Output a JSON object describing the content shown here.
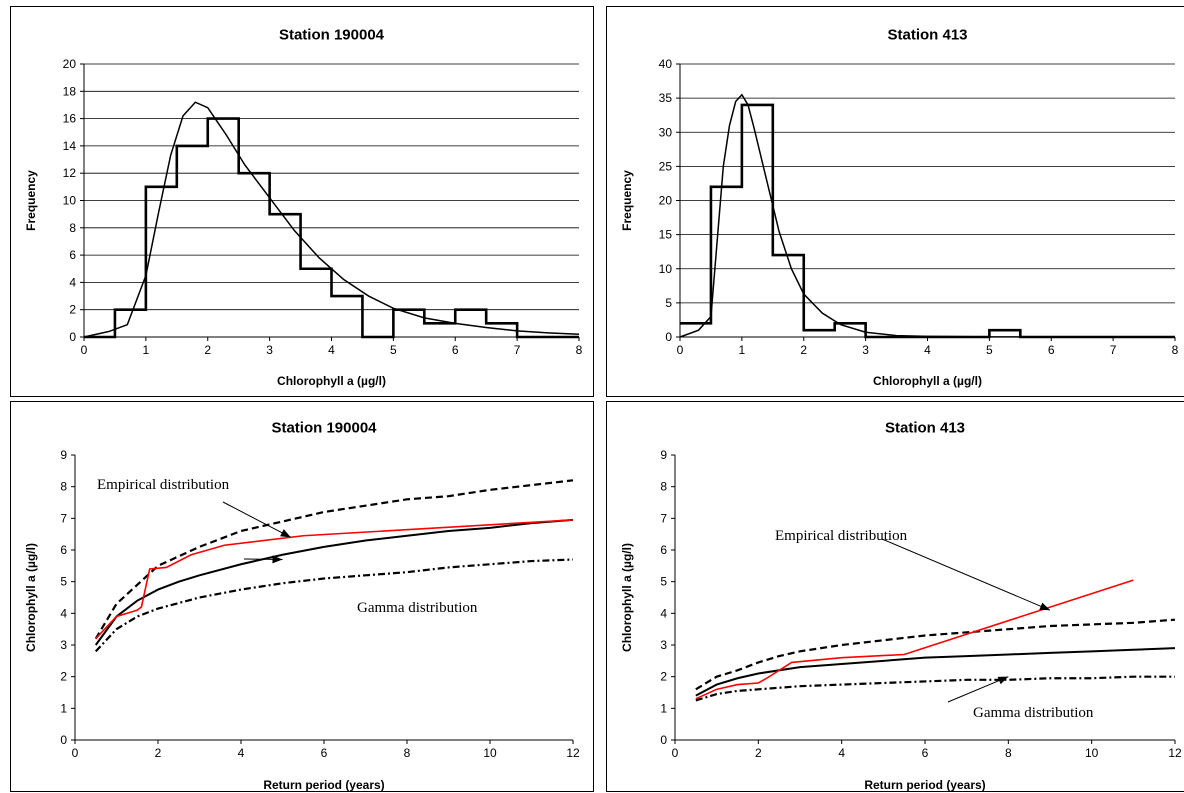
{
  "chart_data": [
    {
      "type": "bar",
      "title": "Station 190004",
      "xlabel": "Chlorophyll a (µg/l)",
      "ylabel": "Frequency",
      "xlim": [
        0,
        8
      ],
      "ylim": [
        0,
        20
      ],
      "xticks": [
        0,
        1,
        2,
        3,
        4,
        5,
        6,
        7,
        8
      ],
      "yticks": [
        0,
        2,
        4,
        6,
        8,
        10,
        12,
        14,
        16,
        18,
        20
      ],
      "grid": "horizontal",
      "series": [
        {
          "kind": "histogram-step",
          "bin_edges": [
            0,
            0.5,
            1,
            1.5,
            2,
            2.5,
            3,
            3.5,
            4,
            4.5,
            5,
            5.5,
            6,
            6.5,
            7,
            7.5,
            8
          ],
          "values": [
            0,
            2,
            11,
            14,
            16,
            12,
            9,
            5,
            3,
            0,
            2,
            1,
            2,
            1,
            0,
            0
          ]
        },
        {
          "kind": "fitted-curve",
          "x": [
            0,
            0.4,
            0.7,
            1.0,
            1.2,
            1.4,
            1.6,
            1.8,
            2.0,
            2.3,
            2.6,
            3.0,
            3.4,
            3.8,
            4.2,
            4.6,
            5.0,
            5.5,
            6.0,
            6.5,
            7.0,
            7.5,
            8.0
          ],
          "values": [
            0,
            0.4,
            0.9,
            4.5,
            9.0,
            13.3,
            16.2,
            17.2,
            16.8,
            14.8,
            12.6,
            10.2,
            7.8,
            5.8,
            4.2,
            3.0,
            2.1,
            1.4,
            1.0,
            0.7,
            0.45,
            0.3,
            0.2
          ]
        }
      ]
    },
    {
      "type": "bar",
      "title": "Station 413",
      "xlabel": "Chlorophyll a (µg/l)",
      "ylabel": "Frequency",
      "xlim": [
        0,
        8
      ],
      "ylim": [
        0,
        40
      ],
      "xticks": [
        0,
        1,
        2,
        3,
        4,
        5,
        6,
        7,
        8
      ],
      "yticks": [
        0,
        5,
        10,
        15,
        20,
        25,
        30,
        35,
        40
      ],
      "grid": "horizontal",
      "series": [
        {
          "kind": "histogram-step",
          "bin_edges": [
            0,
            0.5,
            1,
            1.5,
            2,
            2.5,
            3,
            3.5,
            4,
            4.5,
            5,
            5.5,
            6,
            6.5,
            7,
            7.5,
            8
          ],
          "values": [
            2,
            22,
            34,
            12,
            1,
            2,
            0,
            0,
            0,
            0,
            1,
            0,
            0,
            0,
            0,
            0
          ]
        },
        {
          "kind": "fitted-curve",
          "x": [
            0,
            0.3,
            0.5,
            0.6,
            0.7,
            0.8,
            0.9,
            1.0,
            1.1,
            1.2,
            1.4,
            1.6,
            1.8,
            2.0,
            2.3,
            2.6,
            3.0,
            3.5,
            4.0,
            5.0,
            6.0,
            8.0
          ],
          "values": [
            0,
            1.0,
            3.0,
            14.0,
            25.0,
            31.0,
            34.5,
            35.5,
            34.0,
            30.5,
            23.0,
            15.5,
            10.0,
            6.3,
            3.5,
            1.8,
            0.7,
            0.2,
            0.1,
            0.02,
            0,
            0
          ]
        }
      ]
    },
    {
      "type": "line",
      "title": "Station 190004",
      "xlabel": "Return period (years)",
      "ylabel": "Chlorophyll a (µg/l)",
      "xlim": [
        0,
        12
      ],
      "ylim": [
        0,
        9
      ],
      "xticks": [
        0,
        2,
        4,
        6,
        8,
        10,
        12
      ],
      "yticks": [
        0,
        1,
        2,
        3,
        4,
        5,
        6,
        7,
        8,
        9
      ],
      "grid": "none",
      "annotations": [
        {
          "text": "Empirical distribution",
          "target_x": 5.2,
          "target_y": 6.4
        },
        {
          "text": "Gamma distribution",
          "target_x": 5.0,
          "target_y": 5.7
        }
      ],
      "series": [
        {
          "style": "dashed-upper",
          "x": [
            0.5,
            1.0,
            1.5,
            2.0,
            3.0,
            4.0,
            5.0,
            6.0,
            7.0,
            8.0,
            9.0,
            10.0,
            11.0,
            12.0
          ],
          "values": [
            3.2,
            4.3,
            4.9,
            5.5,
            6.1,
            6.6,
            6.9,
            7.2,
            7.4,
            7.6,
            7.7,
            7.9,
            8.05,
            8.2
          ]
        },
        {
          "style": "solid-black",
          "x": [
            0.5,
            1.0,
            1.5,
            2.0,
            2.5,
            3.0,
            4.0,
            5.0,
            6.0,
            7.0,
            8.0,
            9.0,
            10.0,
            11.0,
            12.0
          ],
          "values": [
            3.0,
            3.9,
            4.4,
            4.75,
            5.0,
            5.2,
            5.55,
            5.85,
            6.1,
            6.3,
            6.45,
            6.6,
            6.7,
            6.85,
            6.95
          ]
        },
        {
          "style": "solid-red",
          "x": [
            0.5,
            1.0,
            1.5,
            1.6,
            1.8,
            2.2,
            2.8,
            3.6,
            5.5,
            12.0
          ],
          "values": [
            3.2,
            3.9,
            4.1,
            4.2,
            5.4,
            5.45,
            5.85,
            6.15,
            6.45,
            6.95
          ]
        },
        {
          "style": "dashed-lower",
          "x": [
            0.5,
            1.0,
            1.5,
            2.0,
            3.0,
            4.0,
            5.0,
            6.0,
            7.0,
            8.0,
            9.0,
            10.0,
            11.0,
            12.0
          ],
          "values": [
            2.8,
            3.5,
            3.9,
            4.15,
            4.5,
            4.75,
            4.95,
            5.1,
            5.2,
            5.3,
            5.45,
            5.55,
            5.65,
            5.7
          ]
        }
      ]
    },
    {
      "type": "line",
      "title": "Station 413",
      "xlabel": "Return period (years)",
      "ylabel": "Chlorophyll a (µg/l)",
      "xlim": [
        0,
        12
      ],
      "ylim": [
        0,
        9
      ],
      "xticks": [
        0,
        2,
        4,
        6,
        8,
        10,
        12
      ],
      "yticks": [
        0,
        1,
        2,
        3,
        4,
        5,
        6,
        7,
        8,
        9
      ],
      "grid": "none",
      "annotations": [
        {
          "text": "Empirical distribution",
          "target_x": 9.0,
          "target_y": 4.1
        },
        {
          "text": "Gamma distribution",
          "target_x": 8.0,
          "target_y": 2.0
        }
      ],
      "series": [
        {
          "style": "dashed-upper",
          "x": [
            0.5,
            1.0,
            1.5,
            2.0,
            2.5,
            3.0,
            4.0,
            5.0,
            6.0,
            7.0,
            8.0,
            9.0,
            10.0,
            11.0,
            12.0
          ],
          "values": [
            1.6,
            2.0,
            2.2,
            2.45,
            2.65,
            2.8,
            3.0,
            3.15,
            3.3,
            3.4,
            3.5,
            3.6,
            3.65,
            3.7,
            3.8
          ]
        },
        {
          "style": "solid-black",
          "x": [
            0.5,
            1.0,
            1.5,
            2.0,
            3.0,
            4.0,
            5.0,
            6.0,
            7.0,
            8.0,
            9.0,
            10.0,
            11.0,
            12.0
          ],
          "values": [
            1.4,
            1.75,
            1.95,
            2.1,
            2.3,
            2.4,
            2.5,
            2.6,
            2.65,
            2.7,
            2.75,
            2.8,
            2.85,
            2.9
          ]
        },
        {
          "style": "solid-red",
          "x": [
            0.5,
            1.0,
            1.5,
            2.0,
            2.2,
            2.8,
            4.0,
            5.5,
            11.0
          ],
          "values": [
            1.3,
            1.6,
            1.75,
            1.8,
            1.95,
            2.45,
            2.6,
            2.7,
            5.05
          ]
        },
        {
          "style": "dashed-lower",
          "x": [
            0.5,
            1.0,
            1.5,
            2.0,
            3.0,
            4.0,
            5.0,
            6.0,
            7.0,
            8.0,
            9.0,
            10.0,
            11.0,
            12.0
          ],
          "values": [
            1.25,
            1.45,
            1.55,
            1.6,
            1.7,
            1.75,
            1.8,
            1.85,
            1.9,
            1.9,
            1.95,
            1.95,
            2.0,
            2.0
          ]
        }
      ]
    }
  ]
}
